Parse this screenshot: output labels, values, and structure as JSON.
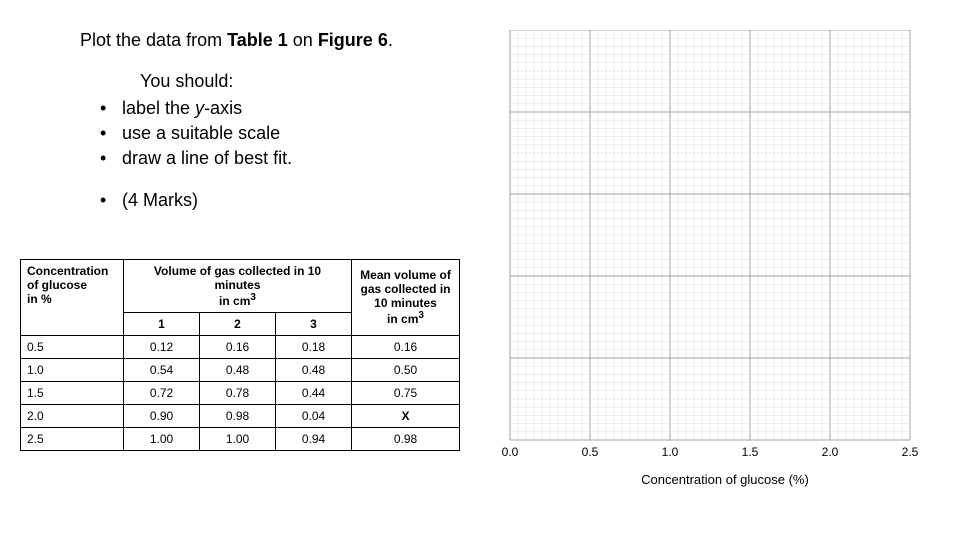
{
  "instruction": {
    "prefix": "Plot the data from ",
    "table_ref": "Table 1",
    "middle": " on ",
    "figure_ref": "Figure 6",
    "suffix": "."
  },
  "you_should_label": "You should:",
  "bullets": [
    {
      "pre": "label the ",
      "ital": "y",
      "post": "-axis"
    },
    {
      "pre": "use a suitable scale",
      "ital": "",
      "post": ""
    },
    {
      "pre": "draw a line of best fit.",
      "ital": "",
      "post": ""
    }
  ],
  "marks_bullet": "(4 Marks)",
  "table": {
    "col1_header_l1": "Concentration",
    "col1_header_l2": "of glucose",
    "col1_header_l3": "in %",
    "vol_header_l1": "Volume of gas collected in 10 minutes",
    "vol_header_l2": "in cm",
    "vol_header_sup": "3",
    "sub1": "1",
    "sub2": "2",
    "sub3": "3",
    "mean_header_l1": "Mean volume of",
    "mean_header_l2": "gas collected in",
    "mean_header_l3": "10 minutes",
    "mean_header_l4": "in cm",
    "mean_header_sup": "3",
    "rows": [
      {
        "c": "0.5",
        "v1": "0.12",
        "v2": "0.16",
        "v3": "0.18",
        "m": "0.16"
      },
      {
        "c": "1.0",
        "v1": "0.54",
        "v2": "0.48",
        "v3": "0.48",
        "m": "0.50"
      },
      {
        "c": "1.5",
        "v1": "0.72",
        "v2": "0.78",
        "v3": "0.44",
        "m": "0.75"
      },
      {
        "c": "2.0",
        "v1": "0.90",
        "v2": "0.98",
        "v3": "0.04",
        "m": "X"
      },
      {
        "c": "2.5",
        "v1": "1.00",
        "v2": "1.00",
        "v3": "0.94",
        "m": "0.98"
      }
    ]
  },
  "graph": {
    "x_axis_label": "Concentration of glucose (%)",
    "x_ticks": [
      "0.0",
      "0.5",
      "1.0",
      "1.5",
      "2.0",
      "2.5"
    ],
    "grid": {
      "major_count_x": 6,
      "major_count_y": 6,
      "minor_per_major": 10,
      "major_color": "#a2a2a2",
      "minor_color": "#d9d9d9",
      "major_width": 1.0,
      "minor_width": 0.5
    }
  }
}
